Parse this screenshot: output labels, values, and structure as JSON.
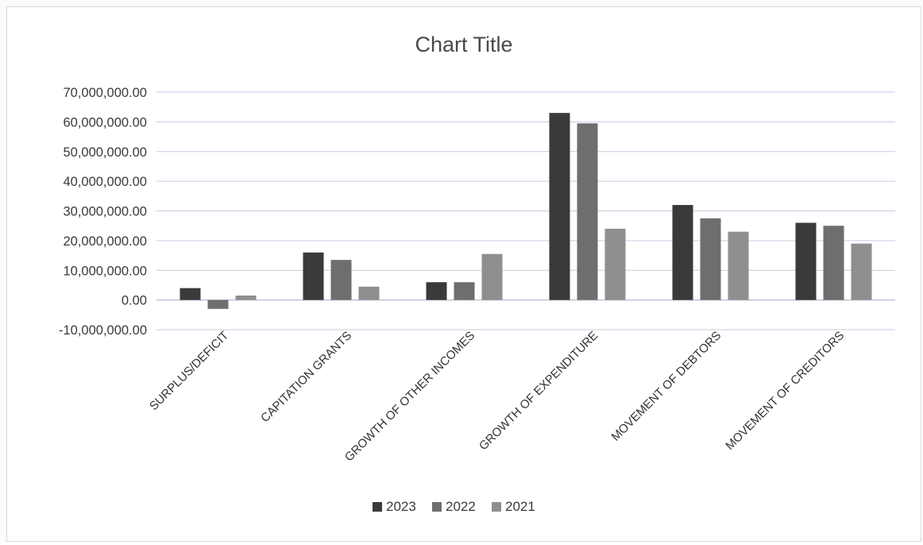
{
  "chart_data": {
    "type": "bar",
    "title": "Chart Title",
    "xlabel": "",
    "ylabel": "",
    "ylim": [
      -10000000,
      70000000
    ],
    "y_ticks": [
      70000000,
      60000000,
      50000000,
      40000000,
      30000000,
      20000000,
      10000000,
      0,
      -10000000
    ],
    "y_tick_labels": [
      "70,000,000.00",
      "60,000,000.00",
      "50,000,000.00",
      "40,000,000.00",
      "30,000,000.00",
      "20,000,000.00",
      "10,000,000.00",
      "0.00",
      "-10,000,000.00"
    ],
    "categories": [
      "SURPLUS/DEFICIT",
      "CAPITATION GRANTS",
      "GROWTH OF OTHER INCOMES",
      "GROWTH OF EXPENDITURE",
      "MOVEMENT OF DEBTORS",
      "MOVEMENT OF CREDITORS"
    ],
    "series": [
      {
        "name": "2023",
        "color": "#3a3a3a",
        "values": [
          4000000,
          16000000,
          6000000,
          63000000,
          32000000,
          26000000
        ]
      },
      {
        "name": "2022",
        "color": "#6e6e6e",
        "values": [
          -3000000,
          13500000,
          6000000,
          59500000,
          27500000,
          25000000
        ]
      },
      {
        "name": "2021",
        "color": "#8f8f8f",
        "values": [
          1500000,
          4500000,
          15500000,
          24000000,
          23000000,
          19000000
        ]
      }
    ],
    "grid": true,
    "legend_position": "bottom"
  }
}
